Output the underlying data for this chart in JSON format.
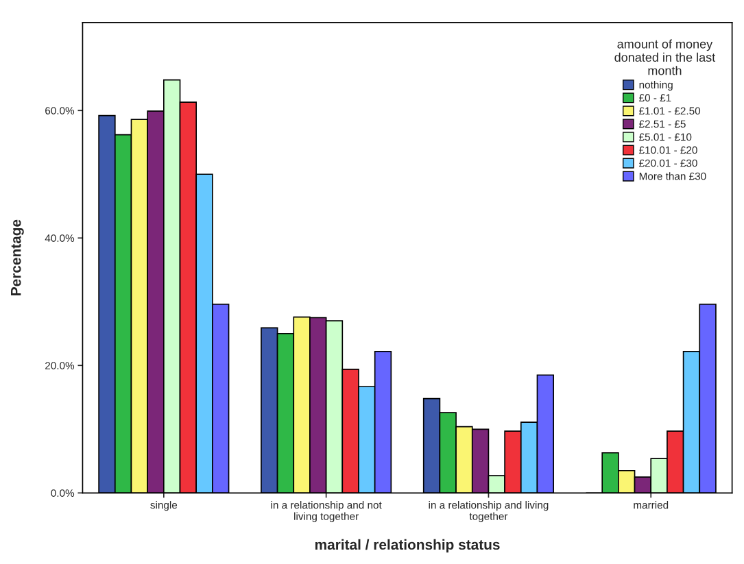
{
  "chart_data": {
    "type": "bar",
    "xlabel": "marital / relationship status",
    "ylabel": "Percentage",
    "legend_title": "amount of money\ndonated in the last\nmonth",
    "categories": [
      "single",
      "in a relationship and not\nliving together",
      "in a relationship and living\ntogether",
      "married"
    ],
    "series": [
      {
        "name": "nothing",
        "color": "#3d59ab",
        "values": [
          59.2,
          25.9,
          14.8,
          0
        ]
      },
      {
        "name": "£0 - £1",
        "color": "#2fb847",
        "values": [
          56.2,
          25.0,
          12.6,
          6.3
        ]
      },
      {
        "name": "£1.01 - £2.50",
        "color": "#faf572",
        "values": [
          58.6,
          27.6,
          10.4,
          3.5
        ]
      },
      {
        "name": "£2.51 - £5",
        "color": "#7b2678",
        "values": [
          59.9,
          27.5,
          10.0,
          2.5
        ]
      },
      {
        "name": "£5.01 - £10",
        "color": "#ccffcc",
        "values": [
          64.8,
          27.0,
          2.7,
          5.4
        ]
      },
      {
        "name": "£10.01 - £20",
        "color": "#f0323a",
        "values": [
          61.3,
          19.4,
          9.7,
          9.7
        ]
      },
      {
        "name": "£20.01 - £30",
        "color": "#66c8ff",
        "values": [
          50.0,
          16.7,
          11.1,
          22.2
        ]
      },
      {
        "name": "More than £30",
        "color": "#6666ff",
        "values": [
          29.6,
          22.2,
          18.5,
          29.6
        ]
      }
    ],
    "ylim": [
      0,
      73.8
    ],
    "yticks": [
      {
        "value": 0,
        "label": "0.0%"
      },
      {
        "value": 20,
        "label": "20.0%"
      },
      {
        "value": 40,
        "label": "40.0%"
      },
      {
        "value": 60,
        "label": "60.0%"
      }
    ],
    "grid": false,
    "legend": "top right"
  }
}
